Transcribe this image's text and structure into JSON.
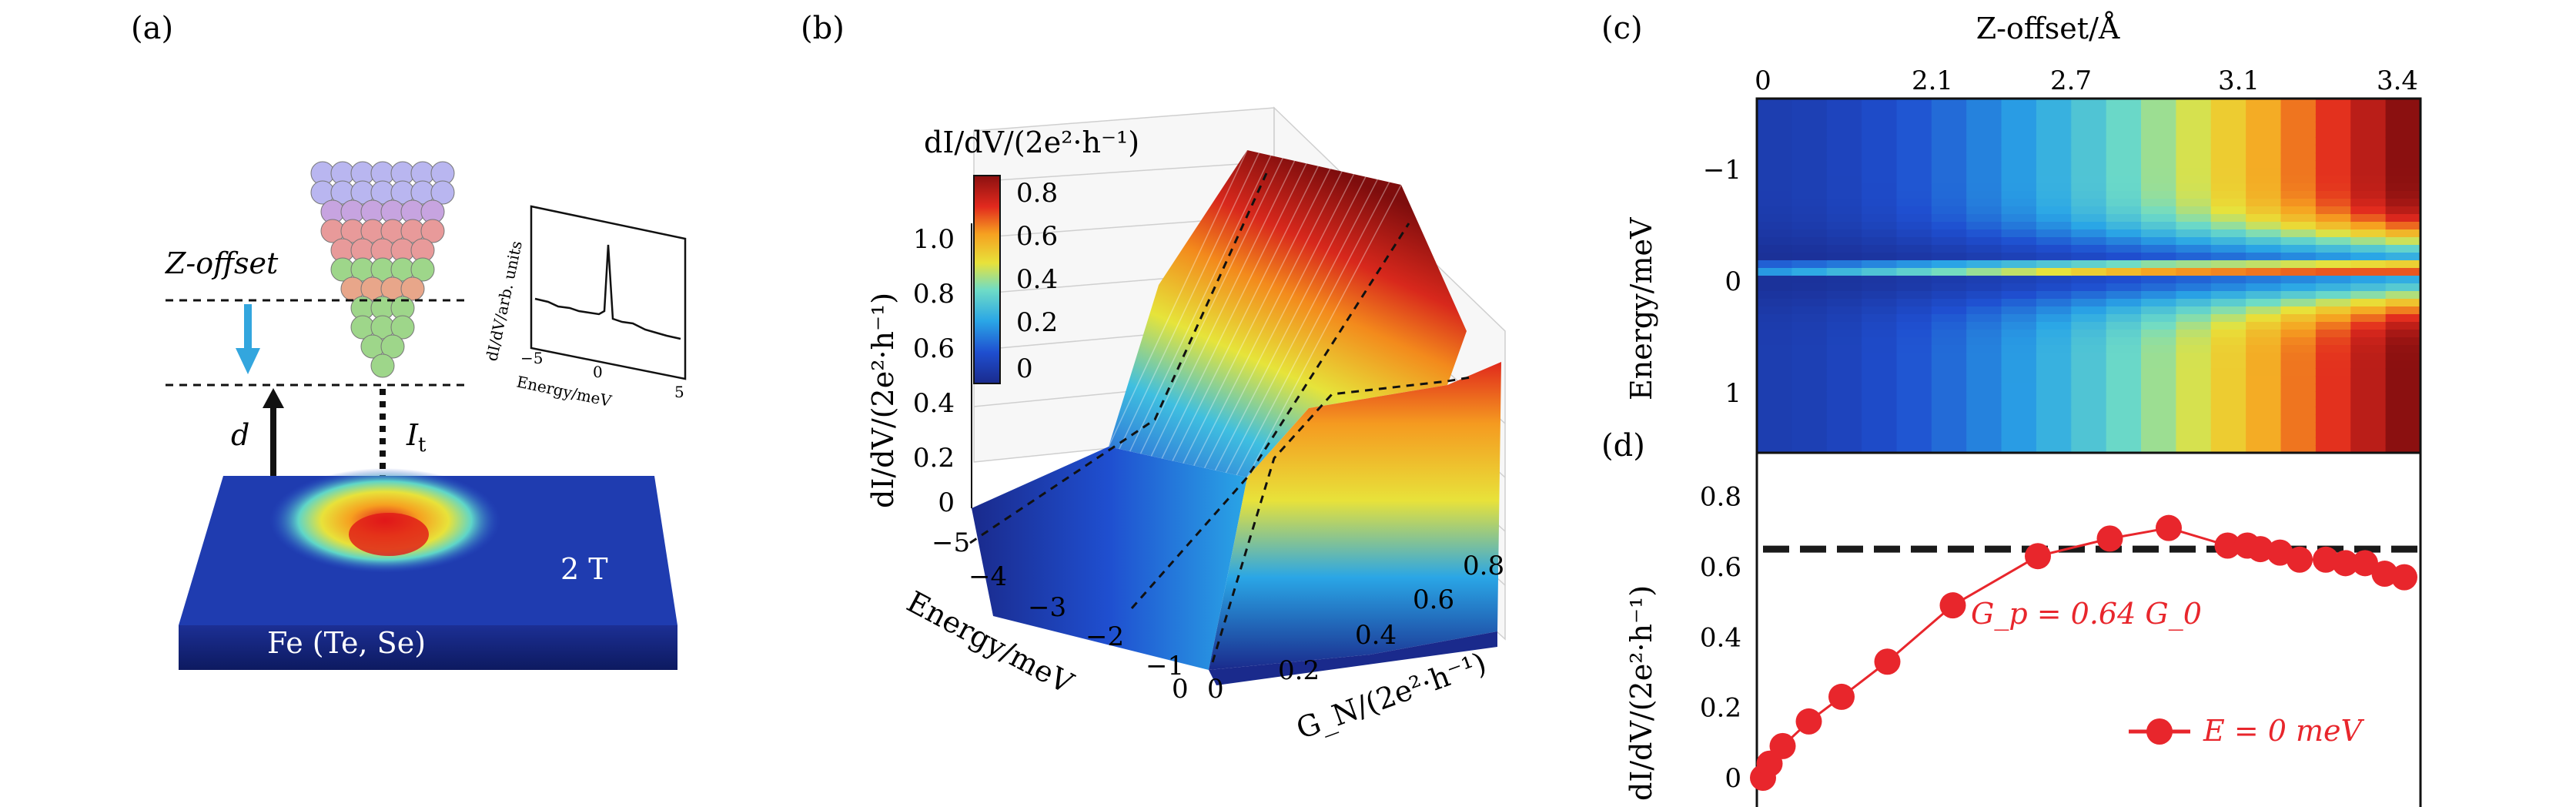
{
  "panels": {
    "a": {
      "label": "(a)",
      "z_offset_label": "Z-offset",
      "d_label": "d",
      "it_label": "I",
      "it_sub": "t",
      "field_label": "2 T",
      "sample_label": "Fe (Te, Se)",
      "inset": {
        "ylabel": "dI/dV/arb. units",
        "xlabel": "Energy/meV",
        "xticks": [
          "−5",
          "0",
          "5"
        ]
      }
    },
    "b": {
      "label": "(b)",
      "zlabel": "dI/dV/(2e²·h⁻¹)",
      "colorbar_title": "dI/dV/(2e²·h⁻¹)",
      "colorbar_ticks": [
        "0.8",
        "0.6",
        "0.4",
        "0.2",
        "0"
      ],
      "z_ticks": [
        "1.0",
        "0.8",
        "0.6",
        "0.4",
        "0.2",
        "0"
      ],
      "energy_label": "Energy/meV",
      "energy_ticks": [
        "−5",
        "−4",
        "−3",
        "−2",
        "−1",
        "0"
      ],
      "gn_label": "G_N/(2e²·h⁻¹)",
      "gn_ticks": [
        "0",
        "0.2",
        "0.4",
        "0.6",
        "0.8"
      ]
    },
    "c": {
      "label": "(c)",
      "top_xlabel": "Z-offset/Å",
      "top_ticks": [
        "0",
        "2.1",
        "2.7",
        "3.1",
        "3.4"
      ],
      "ylabel": "Energy/meV",
      "yticks": [
        "−1",
        "0",
        "1"
      ]
    },
    "d": {
      "label": "(d)",
      "ylabel": "dI/dV/(2e²·h⁻¹)",
      "yticks": [
        "0.8",
        "0.6",
        "0.4",
        "0.2",
        "0"
      ],
      "annotation": "G_p = 0.64 G_0",
      "legend": "E = 0 meV"
    }
  },
  "chart_data": [
    {
      "type": "scatter",
      "panel": "d",
      "ylabel": "dI/dV/(2e²·h⁻¹)",
      "ylim": [
        0,
        0.88
      ],
      "series": [
        {
          "name": "E = 0 meV",
          "color": "#e8262c",
          "x": [
            0,
            0.01,
            0.03,
            0.07,
            0.12,
            0.19,
            0.29,
            0.42,
            0.53,
            0.62,
            0.71,
            0.74,
            0.76,
            0.79,
            0.82,
            0.86,
            0.89,
            0.92,
            0.95,
            0.98
          ],
          "y": [
            0.0,
            0.04,
            0.09,
            0.16,
            0.23,
            0.33,
            0.49,
            0.63,
            0.68,
            0.71,
            0.66,
            0.66,
            0.65,
            0.64,
            0.62,
            0.62,
            0.61,
            0.61,
            0.58,
            0.57
          ]
        }
      ],
      "reference_line": {
        "y": 0.65,
        "style": "dashed",
        "color": "#1a1a1a"
      }
    }
  ],
  "colors": {
    "series_red": "#e8262c",
    "surface_dark": "#1a2a8c",
    "surface_hot": "#8b1010"
  }
}
